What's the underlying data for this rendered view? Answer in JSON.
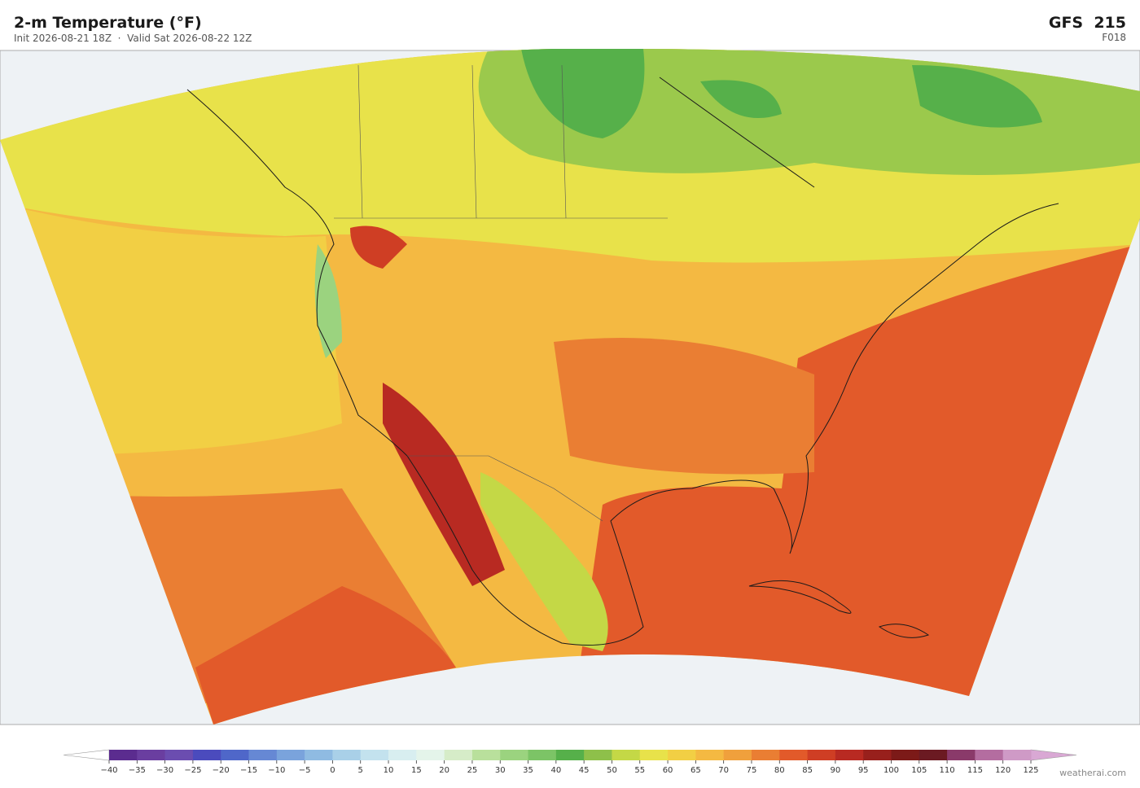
{
  "header": {
    "title": "2-m Temperature  (°F)",
    "subtitle": "Init 2026-08-21 18Z  ·  Valid Sat 2026-08-22 12Z",
    "model": "GFS  215",
    "forecast_hour": "F018"
  },
  "colorbar": {
    "ticks": [
      {
        "value": -40,
        "label": "−40"
      },
      {
        "value": -35,
        "label": "−35"
      },
      {
        "value": -30,
        "label": "−30"
      },
      {
        "value": -25,
        "label": "−25"
      },
      {
        "value": -20,
        "label": "−20"
      },
      {
        "value": -15,
        "label": "−15"
      },
      {
        "value": -10,
        "label": "−10"
      },
      {
        "value": -5,
        "label": "−5"
      },
      0,
      5,
      10,
      15,
      20,
      25,
      30,
      35,
      40,
      45,
      50,
      55,
      60,
      65,
      70,
      75,
      80,
      85,
      90,
      95,
      100,
      105,
      110,
      115,
      120,
      125
    ],
    "colors": [
      "#5b2c8f",
      "#6a3ea0",
      "#6b4db0",
      "#4b4bbd",
      "#4f67c9",
      "#6688d4",
      "#7aa3dc",
      "#8fbbe2",
      "#a9d0e8",
      "#c3e2ee",
      "#d8eef0",
      "#e4f4ea",
      "#d6ecc8",
      "#b9e09c",
      "#9bd37f",
      "#7cc466",
      "#56b04a",
      "#8ec04a",
      "#c4d846",
      "#e8e24a",
      "#f2cf44",
      "#f4b942",
      "#f0a03c",
      "#ea7e33",
      "#e25a2a",
      "#cf3e24",
      "#b82a22",
      "#98201c",
      "#7c1a18",
      "#6b1a22",
      "#8a3a6a",
      "#b46da0",
      "#cf9ac6"
    ],
    "under_color": "#ffffff",
    "over_color": "#d9a8d4"
  },
  "footer": {
    "credit": "weatherai.com"
  }
}
